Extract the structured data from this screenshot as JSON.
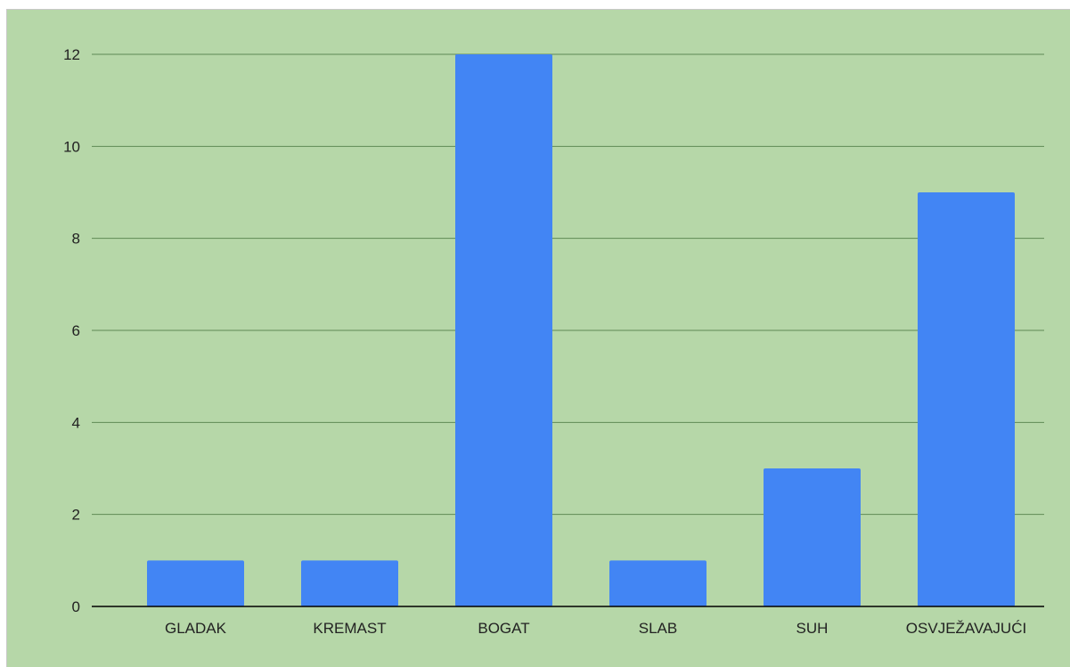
{
  "colors": {
    "background": "#b6d7a8",
    "bar": "#4285f4",
    "gridline": "#5f8a55",
    "axis": "#000000"
  },
  "chart_data": {
    "type": "bar",
    "categories": [
      "GLADAK",
      "KREMAST",
      "BOGAT",
      "SLAB",
      "SUH",
      "OSVJEŽAVAJUĆI"
    ],
    "values": [
      1,
      1,
      12,
      1,
      3,
      9
    ],
    "y_ticks": [
      "0",
      "2",
      "4",
      "6",
      "8",
      "10",
      "12"
    ],
    "ylim": [
      0,
      12
    ],
    "grid": true,
    "legend": "none",
    "title": "",
    "xlabel": "",
    "ylabel": ""
  }
}
